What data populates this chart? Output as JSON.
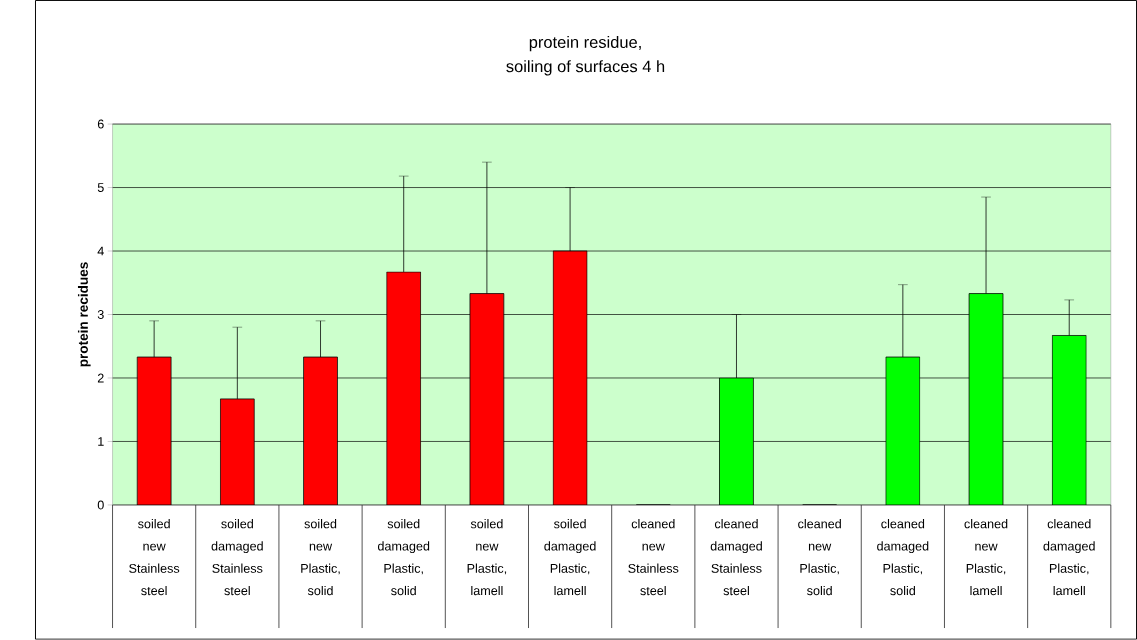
{
  "chart_data": {
    "type": "bar",
    "title": "protein residue,",
    "subtitle": "soiling of surfaces 4 h",
    "ylabel": "protein recidues",
    "categories": [
      "soiled new Stainless steel",
      "soiled damaged Stainless steel",
      "soiled new Plastic, solid",
      "soiled damaged Plastic, solid",
      "soiled new Plastic, lamell",
      "soiled damaged Plastic, lamell",
      "cleaned new Stainless steel",
      "cleaned damaged Stainless steel",
      "cleaned new Plastic, solid",
      "cleaned damaged Plastic, solid",
      "cleaned new Plastic, lamell",
      "cleaned damaged Plastic, lamell"
    ],
    "values": [
      2.33,
      1.67,
      2.33,
      3.67,
      3.33,
      4.0,
      0,
      2.0,
      0,
      2.33,
      3.33,
      2.67
    ],
    "colors": [
      "#ff0000",
      "#ff0000",
      "#ff0000",
      "#ff0000",
      "#ff0000",
      "#ff0000",
      "#00ff00",
      "#00ff00",
      "#00ff00",
      "#00ff00",
      "#00ff00",
      "#00ff00"
    ],
    "errors": [
      [
        2.33,
        2.9
      ],
      [
        1.67,
        2.8
      ],
      [
        2.33,
        2.9
      ],
      [
        3.67,
        5.18
      ],
      [
        3.33,
        5.4
      ],
      [
        4.0,
        5.0
      ],
      null,
      [
        2.0,
        3.0
      ],
      null,
      [
        2.33,
        3.47
      ],
      [
        3.33,
        4.85
      ],
      [
        2.67,
        3.23
      ]
    ],
    "ylim": [
      0,
      6
    ],
    "yticks": [
      0,
      1,
      2,
      3,
      4,
      5,
      6
    ],
    "grid": "y"
  }
}
